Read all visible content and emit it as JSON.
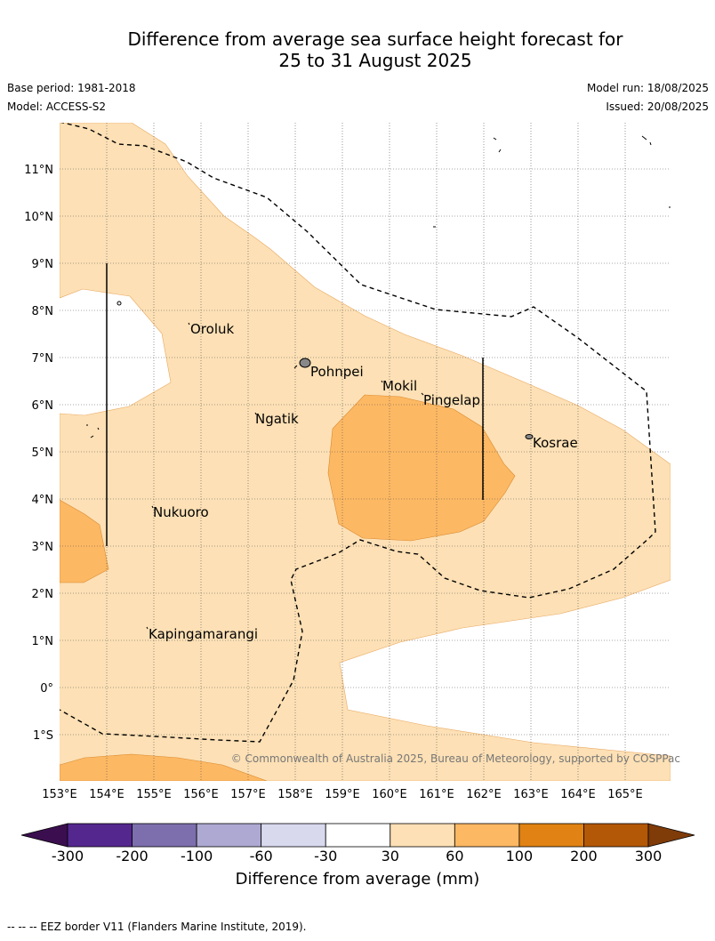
{
  "title_line1": "Difference from average sea surface height forecast for",
  "title_line2": "25 to 31 August 2025",
  "base_period": "Base period: 1981-2018",
  "model": "Model: ACCESS-S2",
  "model_run": "Model run: 18/08/2025",
  "issued": "Issued: 20/08/2025",
  "lon_labels": [
    "153°E",
    "154°E",
    "155°E",
    "156°E",
    "157°E",
    "158°E",
    "159°E",
    "160°E",
    "161°E",
    "162°E",
    "163°E",
    "164°E",
    "165°E"
  ],
  "lat_labels": [
    "11°N",
    "10°N",
    "9°N",
    "8°N",
    "7°N",
    "6°N",
    "5°N",
    "4°N",
    "3°N",
    "2°N",
    "1°N",
    "0°",
    "1°S"
  ],
  "places": [
    {
      "name": "Oroluk"
    },
    {
      "name": "Pohnpei"
    },
    {
      "name": "Mokil"
    },
    {
      "name": "Pingelap"
    },
    {
      "name": "Ngatik"
    },
    {
      "name": "Kosrae"
    },
    {
      "name": "Nukuoro"
    },
    {
      "name": "Kapingamarangi"
    }
  ],
  "copyright": "© Commonwealth of Australia 2025, Bureau of Meteorology, supported by COSPPac",
  "colorbar": {
    "title": "Difference from average (mm)",
    "ticks": [
      "-300",
      "-200",
      "-100",
      "-60",
      "-30",
      "30",
      "60",
      "100",
      "200",
      "300"
    ],
    "colors": [
      "#3b0f4f",
      "#54278f",
      "#7d6fad",
      "#aea9d2",
      "#d9d9ee",
      "#ffffff",
      "#fde0b5",
      "#fdb863",
      "#e08214",
      "#b35806",
      "#7f3b08"
    ]
  },
  "footer": "--  --  -- EEZ border V11 (Flanders Marine Institute, 2019)."
}
